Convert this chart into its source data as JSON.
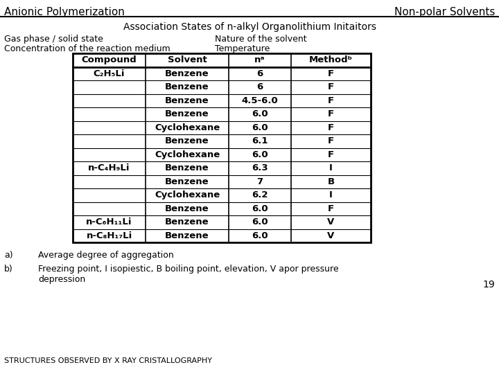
{
  "header_left": "Anionic Polymerization",
  "header_right": "Non-polar Solvents",
  "title": "Association States of n-alkyl Organolithium Initaitors",
  "left_label_1": "Gas phase / solid state",
  "left_label_2": "Concentration of the reaction medium",
  "right_label_1": "Nature of the solvent",
  "right_label_2": "Temperature",
  "table_headers": [
    "Compound",
    "Solvent",
    "nᵃ",
    "Methodᵇ"
  ],
  "table_rows": [
    [
      "C₂H₅Li",
      "Benzene",
      "6",
      "F"
    ],
    [
      "",
      "Benzene",
      "6",
      "F"
    ],
    [
      "",
      "Benzene",
      "4.5-6.0",
      "F"
    ],
    [
      "",
      "Benzene",
      "6.0",
      "F"
    ],
    [
      "",
      "Cyclohexane",
      "6.0",
      "F"
    ],
    [
      "",
      "Benzene",
      "6.1",
      "F"
    ],
    [
      "",
      "Cyclohexane",
      "6.0",
      "F"
    ],
    [
      "n-C₄H₉Li",
      "Benzene",
      "6.3",
      "I"
    ],
    [
      "",
      "Benzene",
      "7",
      "B"
    ],
    [
      "",
      "Cyclohexane",
      "6.2",
      "I"
    ],
    [
      "",
      "Benzene",
      "6.0",
      "F"
    ],
    [
      "n-C₆H₁₁Li",
      "Benzene",
      "6.0",
      "V"
    ],
    [
      "n-C₈H₁₇Li",
      "Benzene",
      "6.0",
      "V"
    ]
  ],
  "note_a_label": "a)",
  "note_a_text": "Average degree of aggregation",
  "note_b_label": "b)",
  "note_b_text": "Freezing point, I isopiestic, B boiling point, elevation, V apor pressure\ndepression",
  "page_number": "19",
  "footer": "STRUCTURES OBSERVED BY X RAY CRISTALLOGRAPHY",
  "bg_color": "#ffffff"
}
